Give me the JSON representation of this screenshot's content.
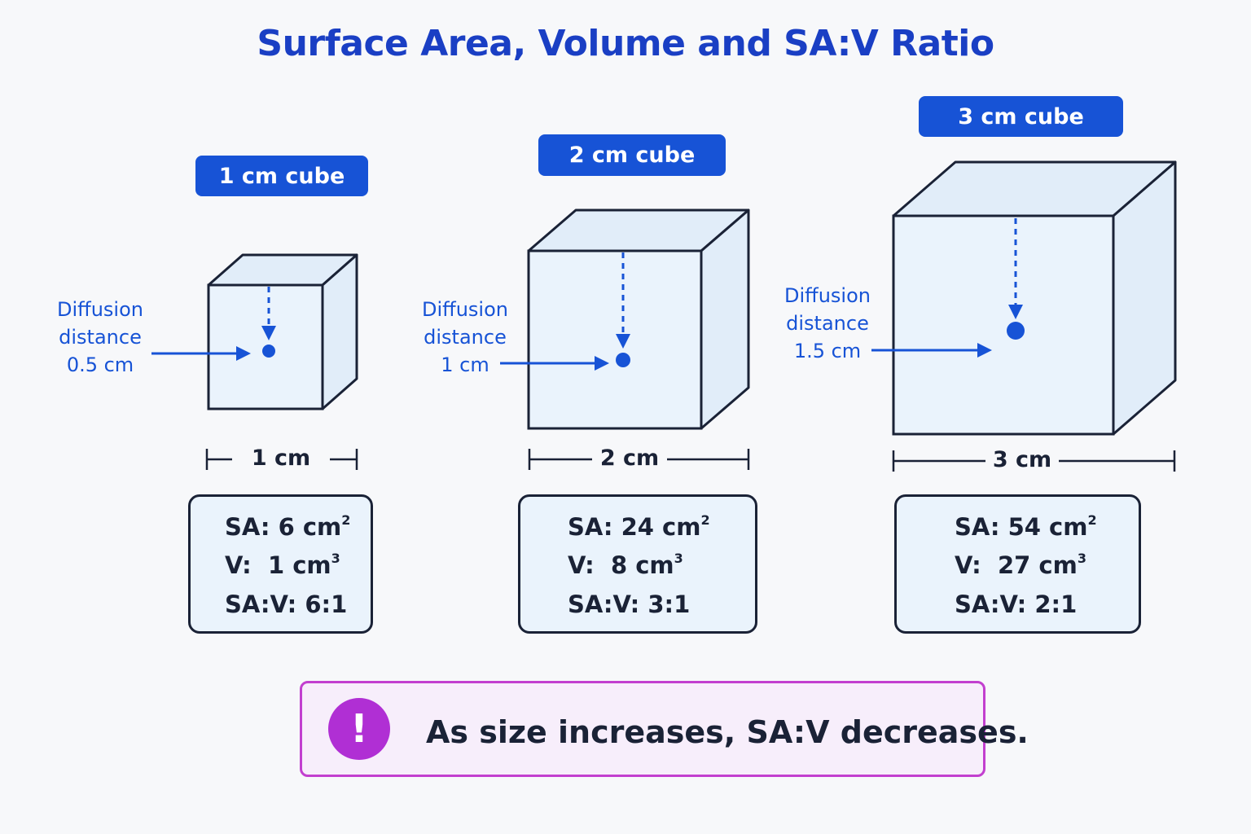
{
  "title": "Surface Area, Volume and SA:V Ratio",
  "cubes": [
    {
      "label": "1 cm cube",
      "diffusion_line1": "Diffusion",
      "diffusion_line2": "distance",
      "diffusion_value": "0.5 cm",
      "dimension": "1 cm",
      "sa_label": "SA:",
      "sa_value": "6 cm",
      "sa_exp": "2",
      "v_label": "V:",
      "v_value": "1 cm",
      "v_exp": "3",
      "ratio_label": "SA:V:",
      "ratio_value": "6:1"
    },
    {
      "label": "2 cm cube",
      "diffusion_line1": "Diffusion",
      "diffusion_line2": "distance",
      "diffusion_value": "1 cm",
      "dimension": "2 cm",
      "sa_label": "SA:",
      "sa_value": "24 cm",
      "sa_exp": "2",
      "v_label": "V:",
      "v_value": "8 cm",
      "v_exp": "3",
      "ratio_label": "SA:V:",
      "ratio_value": "3:1"
    },
    {
      "label": "3 cm cube",
      "diffusion_line1": "Diffusion",
      "diffusion_line2": "distance",
      "diffusion_value": "1.5 cm",
      "dimension": "3 cm",
      "sa_label": "SA:",
      "sa_value": "54 cm",
      "sa_exp": "2",
      "v_label": "V:",
      "v_value": "27 cm",
      "v_exp": "3",
      "ratio_label": "SA:V:",
      "ratio_value": "2:1"
    }
  ],
  "callout": {
    "icon": "exclamation-icon",
    "glyph": "!",
    "text": "As size increases, SA:V decreases."
  },
  "colors": {
    "title": "#1a3fc4",
    "accent": "#1753d6",
    "cube_face": "#eaf3fc",
    "cube_side": "#e1edf9",
    "outline": "#1a2236",
    "callout_border": "#c23fcf",
    "callout_bg": "#f7eefb",
    "icon_bg": "#b02fd4"
  }
}
